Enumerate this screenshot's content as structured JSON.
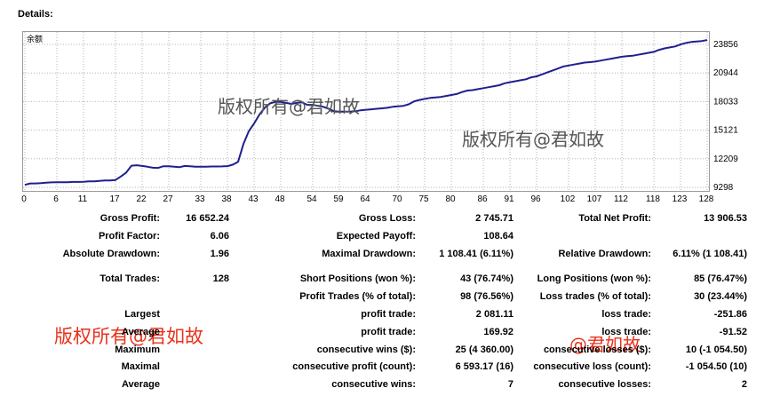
{
  "title": "Details:",
  "watermarks": {
    "w1": "版权所有@君如故",
    "w2": "版权所有@君如故",
    "w3": "版权所有@君如故",
    "w4": "@君如故"
  },
  "colors": {
    "line": "#1f1f8f",
    "grid": "#b4b4b4",
    "watermark_gray": "#555555",
    "watermark_red": "#e8321c"
  },
  "chart_data": {
    "type": "line",
    "series": [
      {
        "name": "余额",
        "values": [
          9550,
          9700,
          9700,
          9720,
          9780,
          9800,
          9810,
          9820,
          9820,
          9850,
          9850,
          9870,
          9900,
          9900,
          9950,
          10000,
          10000,
          10050,
          10400,
          10800,
          11500,
          11550,
          11480,
          11400,
          11300,
          11280,
          11450,
          11450,
          11400,
          11350,
          11480,
          11450,
          11400,
          11400,
          11400,
          11420,
          11420,
          11430,
          11460,
          11600,
          11900,
          13700,
          15000,
          15800,
          16700,
          17400,
          17850,
          18000,
          18000,
          17900,
          17800,
          17900,
          17950,
          17700,
          17700,
          17600,
          17500,
          17300,
          17050,
          17000,
          17000,
          17000,
          17050,
          17150,
          17200,
          17250,
          17300,
          17350,
          17400,
          17500,
          17550,
          17600,
          17750,
          18050,
          18200,
          18300,
          18400,
          18450,
          18500,
          18600,
          18700,
          18800,
          19000,
          19150,
          19200,
          19300,
          19400,
          19500,
          19600,
          19700,
          19900,
          20000,
          20100,
          20200,
          20300,
          20500,
          20600,
          20800,
          21000,
          21200,
          21400,
          21600,
          21700,
          21800,
          21900,
          22000,
          22050,
          22100,
          22200,
          22300,
          22400,
          22500,
          22600,
          22650,
          22700,
          22800,
          22900,
          23000,
          23100,
          23300,
          23450,
          23550,
          23650,
          23850,
          24000,
          24100,
          24150,
          24200,
          24300
        ]
      }
    ],
    "x_ticks": [
      "0",
      "6",
      "11",
      "17",
      "22",
      "27",
      "33",
      "38",
      "43",
      "48",
      "54",
      "59",
      "64",
      "70",
      "75",
      "80",
      "86",
      "91",
      "96",
      "102",
      "107",
      "112",
      "118",
      "123",
      "128"
    ],
    "y_ticks": [
      "23856",
      "20944",
      "18033",
      "15121",
      "12209",
      "9298"
    ],
    "xlim": [
      0,
      128
    ],
    "ylim": [
      9298,
      23856
    ],
    "grid": true
  },
  "stats": {
    "gross_profit_label": "Gross Profit:",
    "gross_profit_value": "16 652.24",
    "gross_loss_label": "Gross Loss:",
    "gross_loss_value": "2 745.71",
    "total_net_profit_label": "Total Net Profit:",
    "total_net_profit_value": "13 906.53",
    "profit_factor_label": "Profit Factor:",
    "profit_factor_value": "6.06",
    "expected_payoff_label": "Expected Payoff:",
    "expected_payoff_value": "108.64",
    "absolute_drawdown_label": "Absolute Drawdown:",
    "absolute_drawdown_value": "1.96",
    "maximal_drawdown_label": "Maximal Drawdown:",
    "maximal_drawdown_value": "1 108.41 (6.11%)",
    "relative_drawdown_label": "Relative Drawdown:",
    "relative_drawdown_value": "6.11% (1 108.41)",
    "total_trades_label": "Total Trades:",
    "total_trades_value": "128",
    "short_positions_label": "Short Positions (won %):",
    "short_positions_value": "43 (76.74%)",
    "long_positions_label": "Long Positions (won %):",
    "long_positions_value": "85 (76.47%)",
    "profit_trades_label": "Profit Trades (% of total):",
    "profit_trades_value": "98 (76.56%)",
    "loss_trades_label": "Loss trades (% of total):",
    "loss_trades_value": "30 (23.44%)",
    "largest_label": "Largest",
    "largest_profit_label": "profit trade:",
    "largest_profit_value": "2 081.11",
    "largest_loss_label": "loss trade:",
    "largest_loss_value": "-251.86",
    "average_label": "Average",
    "average_profit_label": "profit trade:",
    "average_profit_value": "169.92",
    "average_loss_label": "loss trade:",
    "average_loss_value": "-91.52",
    "maximum_label": "Maximum",
    "max_cons_wins_label": "consecutive wins ($):",
    "max_cons_wins_value": "25 (4 360.00)",
    "max_cons_losses_label": "consecutive losses ($):",
    "max_cons_losses_value": "10 (-1 054.50)",
    "maximal_label": "Maximal",
    "maximal_cons_profit_label": "consecutive profit (count):",
    "maximal_cons_profit_value": "6 593.17 (16)",
    "maximal_cons_loss_label": "consecutive loss (count):",
    "maximal_cons_loss_value": "-1 054.50 (10)",
    "average2_label": "Average",
    "avg_cons_wins_label": "consecutive wins:",
    "avg_cons_wins_value": "7",
    "avg_cons_losses_label": "consecutive losses:",
    "avg_cons_losses_value": "2"
  }
}
